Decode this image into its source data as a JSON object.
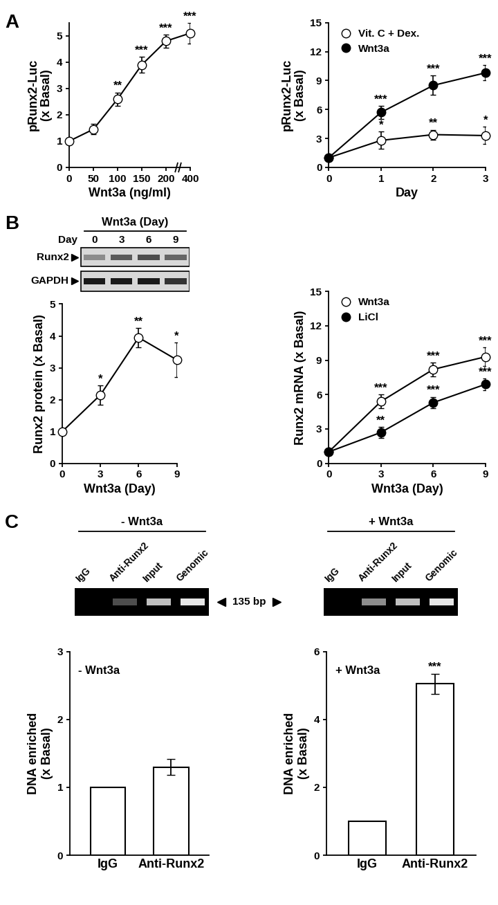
{
  "panels": [
    "A",
    "B",
    "C"
  ],
  "chart_data": [
    {
      "type": "line",
      "x_label": "Wnt3a (ng/ml)",
      "y_label": "pRunx2-Luc\n(x Basal)",
      "categories": [
        "0",
        "50",
        "100",
        "150",
        "200",
        "400"
      ],
      "values": [
        1.0,
        1.45,
        2.6,
        3.9,
        4.8,
        5.1
      ],
      "errors": [
        0.05,
        0.2,
        0.25,
        0.3,
        0.25,
        0.4
      ],
      "significance": [
        null,
        null,
        "**",
        "***",
        "***",
        "***"
      ],
      "color": "#ffffff",
      "marker": "o",
      "ylim": [
        0,
        5.5
      ],
      "yticks": [
        0,
        1,
        2,
        3,
        4,
        5
      ]
    },
    {
      "type": "line",
      "x_label": "Day",
      "y_label": "pRunx2-Luc\n(x Basal)",
      "x": [
        0,
        1,
        2,
        3
      ],
      "xlim": [
        0,
        3
      ],
      "xticks": [
        0,
        1,
        2,
        3
      ],
      "ylim": [
        0,
        15
      ],
      "yticks": [
        0,
        3,
        6,
        9,
        12,
        15
      ],
      "legend": "upper left",
      "series": [
        {
          "name": "Vit. C + Dex.",
          "color": "#ffffff",
          "marker": "o",
          "values": [
            1.0,
            2.8,
            3.4,
            3.3
          ],
          "errors": [
            0.2,
            0.9,
            0.5,
            0.9
          ],
          "significance": [
            null,
            "*",
            "**",
            "*"
          ]
        },
        {
          "name": "Wnt3a",
          "color": "#000000",
          "marker": "o",
          "values": [
            1.0,
            5.7,
            8.5,
            9.8
          ],
          "errors": [
            0.2,
            0.7,
            1.0,
            0.8
          ],
          "significance": [
            null,
            "***",
            "***",
            "***"
          ]
        }
      ]
    },
    {
      "type": "line",
      "x_label": "Wnt3a (Day)",
      "y_label": "Runx2 protein (x Basal)",
      "x": [
        0,
        3,
        6,
        9
      ],
      "xlim": [
        0,
        9
      ],
      "xticks": [
        0,
        3,
        6,
        9
      ],
      "values": [
        1.0,
        2.15,
        3.95,
        3.25
      ],
      "errors": [
        0.05,
        0.3,
        0.3,
        0.55
      ],
      "significance": [
        null,
        "*",
        "**",
        "*"
      ],
      "color": "#ffffff",
      "marker": "o",
      "ylim": [
        0,
        5
      ],
      "yticks": [
        0,
        1,
        2,
        3,
        4,
        5
      ]
    },
    {
      "type": "line",
      "x_label": "Wnt3a (Day)",
      "y_label": "Runx2 mRNA (x Basal)",
      "x": [
        0,
        3,
        6,
        9
      ],
      "xlim": [
        0,
        9
      ],
      "xticks": [
        0,
        3,
        6,
        9
      ],
      "ylim": [
        0,
        15
      ],
      "yticks": [
        0,
        3,
        6,
        9,
        12,
        15
      ],
      "legend": "upper left",
      "series": [
        {
          "name": "Wnt3a",
          "color": "#ffffff",
          "marker": "o",
          "values": [
            1.0,
            5.4,
            8.2,
            9.3
          ],
          "errors": [
            0.2,
            0.6,
            0.6,
            0.8
          ],
          "significance": [
            null,
            "***",
            "***",
            "***"
          ]
        },
        {
          "name": "LiCl",
          "color": "#000000",
          "marker": "o",
          "values": [
            1.0,
            2.7,
            5.3,
            6.9
          ],
          "errors": [
            0.2,
            0.5,
            0.5,
            0.5
          ],
          "significance": [
            null,
            "**",
            "***",
            "***"
          ]
        }
      ]
    },
    {
      "type": "bar",
      "annotation": "- Wnt3a",
      "y_label": "DNA enriched\n(x Basal)",
      "categories": [
        "IgG",
        "Anti-Runx2"
      ],
      "values": [
        1.0,
        1.3
      ],
      "errors": [
        null,
        0.12
      ],
      "significance": [
        null,
        null
      ],
      "color": "#ffffff",
      "ylim": [
        0,
        3
      ],
      "yticks": [
        0,
        1,
        2,
        3
      ]
    },
    {
      "type": "bar",
      "annotation": "+ Wnt3a",
      "y_label": "DNA enriched\n(x Basal)",
      "categories": [
        "IgG",
        "Anti-Runx2"
      ],
      "values": [
        1.0,
        5.05
      ],
      "errors": [
        null,
        0.3
      ],
      "significance": [
        null,
        "***"
      ],
      "color": "#ffffff",
      "ylim": [
        0,
        6
      ],
      "yticks": [
        0,
        2,
        4,
        6
      ]
    }
  ],
  "blot": {
    "title": "Wnt3a (Day)",
    "row_label": "Day",
    "lanes": [
      "0",
      "3",
      "6",
      "9"
    ],
    "bands": [
      "Runx2",
      "GAPDH"
    ]
  },
  "gels": [
    {
      "title": "- Wnt3a",
      "lanes": [
        "IgG",
        "Anti-Runx2",
        "Input",
        "Genomic"
      ]
    },
    {
      "title": "+ Wnt3a",
      "lanes": [
        "IgG",
        "Anti-Runx2",
        "Input",
        "Genomic"
      ]
    }
  ],
  "band_size": "135 bp"
}
